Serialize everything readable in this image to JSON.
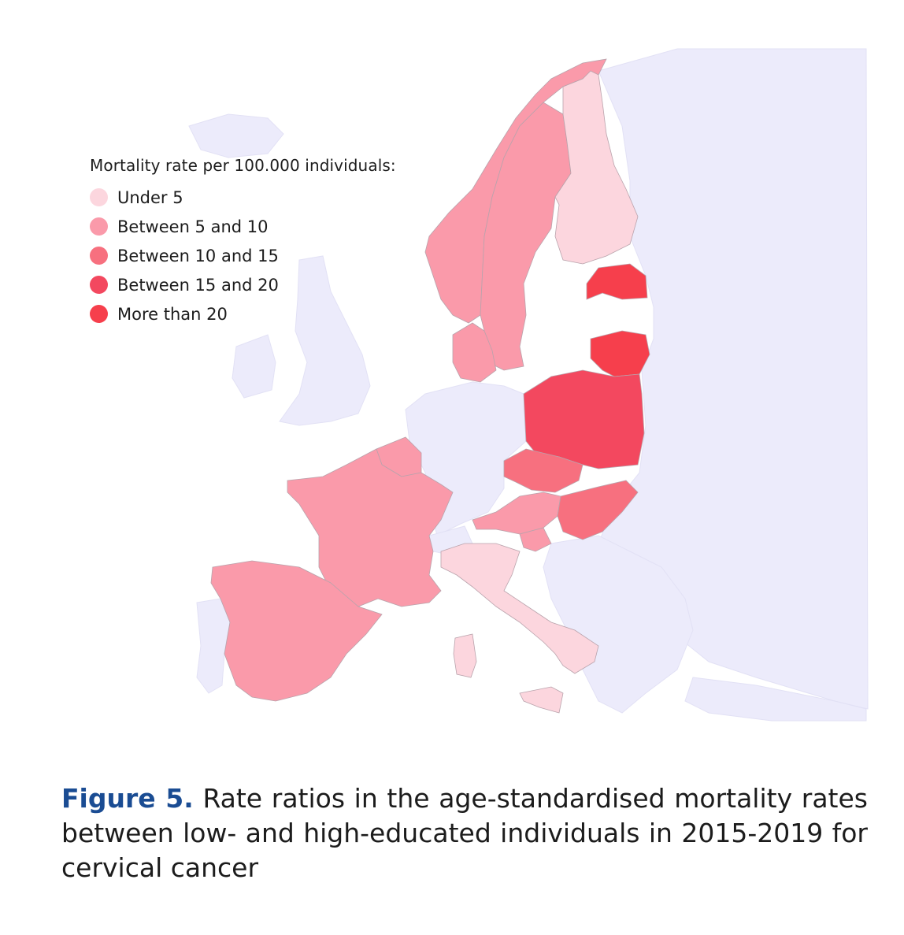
{
  "legend": {
    "title": "Mortality rate per  100.000 individuals:",
    "items": [
      {
        "label": "Under 5",
        "color": "#fcd6de"
      },
      {
        "label": "Between 5 and 10",
        "color": "#fa9aaa"
      },
      {
        "label": "Between 10 and 15",
        "color": "#f7707f"
      },
      {
        "label": "Between 15 and 20",
        "color": "#f3485f"
      },
      {
        "label": "More than 20",
        "color": "#f63f4c"
      }
    ]
  },
  "map": {
    "background_land_color": "#ecebfb",
    "countries": [
      {
        "name": "Norway",
        "category": "Between 5 and 10"
      },
      {
        "name": "Sweden",
        "category": "Between 5 and 10"
      },
      {
        "name": "Finland",
        "category": "Under 5"
      },
      {
        "name": "Estonia",
        "category": "More than 20"
      },
      {
        "name": "Lithuania",
        "category": "More than 20"
      },
      {
        "name": "Denmark",
        "category": "Between 5 and 10"
      },
      {
        "name": "Poland",
        "category": "Between 15 and 20"
      },
      {
        "name": "Czechia",
        "category": "Between 10 and 15"
      },
      {
        "name": "Austria",
        "category": "Between 5 and 10"
      },
      {
        "name": "Slovenia",
        "category": "Between 5 and 10"
      },
      {
        "name": "Hungary",
        "category": "Between 10 and 15"
      },
      {
        "name": "Belgium",
        "category": "Between 5 and 10"
      },
      {
        "name": "France",
        "category": "Between 5 and 10"
      },
      {
        "name": "Spain",
        "category": "Between 5 and 10"
      },
      {
        "name": "Italy",
        "category": "Under 5"
      }
    ]
  },
  "caption": {
    "label": "Figure 5.",
    "text": "Rate ratios in the age-standardised mortality rates between low- and high-educated individuals in 2015-2019 for cervical cancer"
  }
}
